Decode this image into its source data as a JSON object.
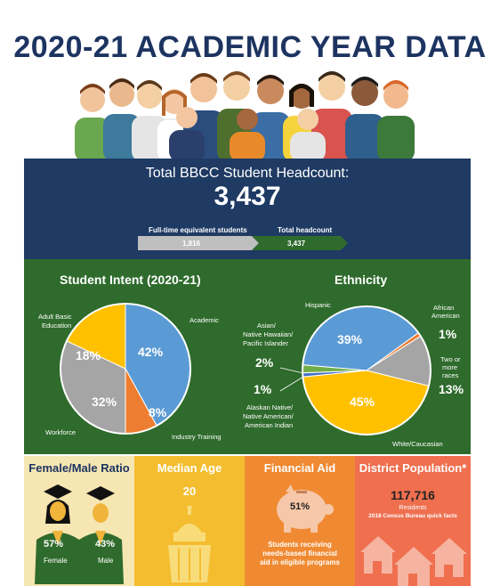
{
  "title": "2020-21 ACADEMIC YEAR DATA",
  "headcount": {
    "label": "Total BBCC Student Headcount:",
    "value": "3,437",
    "fte_label": "Full-time equivalent students",
    "fte_value": "1,816",
    "total_label": "Total headcount",
    "total_value": "3,437"
  },
  "intent": {
    "title": "Student Intent (2020-21)",
    "academic_label": "Academic",
    "academic_pct": "42%",
    "industry_label": "Industry Training",
    "industry_pct": "8%",
    "workforce_label": "Workforce",
    "workforce_pct": "32%",
    "abe_label_1": "Adult Basic",
    "abe_label_2": "Education",
    "abe_pct": "18%"
  },
  "ethnicity": {
    "title": "Ethnicity",
    "hispanic_label": "Hispanic",
    "hispanic_pct": "39%",
    "african_label_1": "African",
    "african_label_2": "American",
    "african_pct": "1%",
    "two_label_1": "Two or",
    "two_label_2": "more",
    "two_label_3": "races",
    "two_pct": "13%",
    "white_label": "White/Caucasian",
    "white_pct": "45%",
    "asian_label_1": "Asian/",
    "asian_label_2": "Native Hawaiian/",
    "asian_label_3": "Pacific Islander",
    "asian_pct": "2%",
    "alaskan_label_1": "Alaskan Native/",
    "alaskan_label_2": "Native American/",
    "alaskan_label_3": "American Indian",
    "alaskan_pct": "1%"
  },
  "ratio": {
    "title": "Female/Male Ratio",
    "female_pct": "57%",
    "female_label": "Female",
    "male_pct": "43%",
    "male_label": "Male"
  },
  "age": {
    "title": "Median Age",
    "value": "20"
  },
  "aid": {
    "title": "Financial Aid",
    "pct": "51%",
    "desc_1": "Students receiving",
    "desc_2": "needs-based financial",
    "desc_3": "aid in eligible programs"
  },
  "population": {
    "title": "District Population*",
    "value": "117,716",
    "unit": "Residents",
    "source": "2018 Census Bureau quick facts"
  },
  "chart_data": [
    {
      "type": "pie",
      "title": "Student Intent (2020-21)",
      "categories": [
        "Academic",
        "Industry Training",
        "Workforce",
        "Adult Basic Education"
      ],
      "values": [
        42,
        8,
        32,
        18
      ],
      "colors": [
        "#5b9bd5",
        "#ed7d31",
        "#a5a5a5",
        "#ffc000"
      ]
    },
    {
      "type": "pie",
      "title": "Ethnicity",
      "categories": [
        "Hispanic",
        "African American",
        "Two or more races",
        "White/Caucasian",
        "Alaskan Native/Native American/American Indian",
        "Asian/Native Hawaiian/Pacific Islander"
      ],
      "values": [
        39,
        1,
        13,
        45,
        1,
        2
      ],
      "colors": [
        "#5b9bd5",
        "#ed7d31",
        "#a5a5a5",
        "#ffc000",
        "#4472c4",
        "#70ad47"
      ]
    }
  ]
}
